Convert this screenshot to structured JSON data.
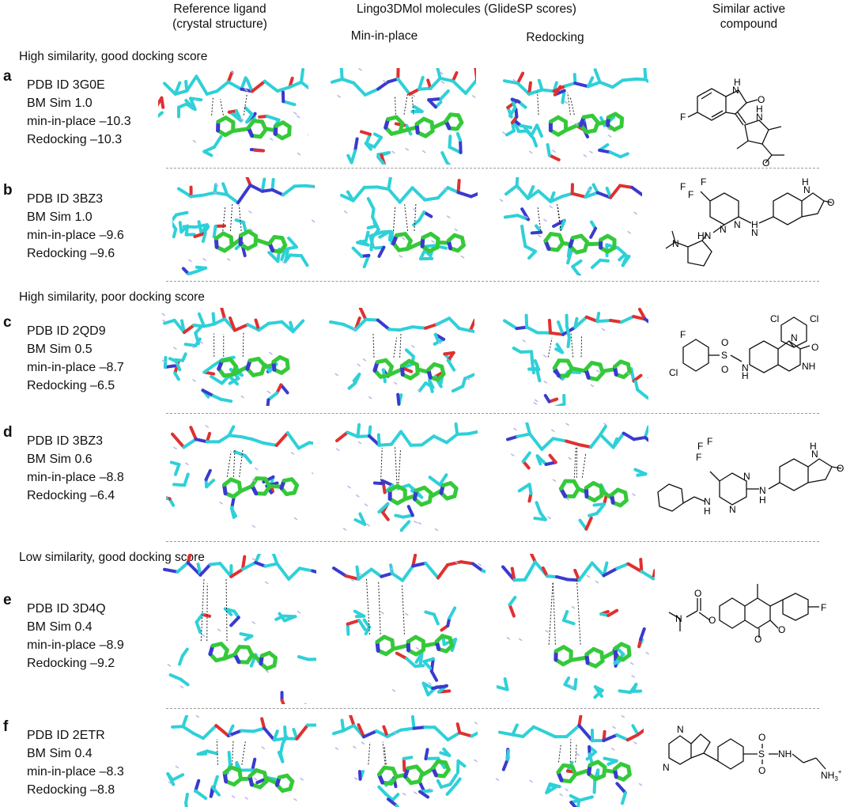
{
  "headers": {
    "reference": [
      "Reference ligand",
      "(crystal structure)"
    ],
    "lingo": "Lingo3DMol molecules (GlideSP scores)",
    "min_in_place": "Min-in-place",
    "redocking": "Redocking",
    "similar": [
      "Similar active",
      "compound"
    ]
  },
  "sections": {
    "high_good": "High similarity, good docking score",
    "high_poor": "High similarity, poor docking score",
    "low_good": "Low similarity, good docking score"
  },
  "rows": [
    {
      "letter": "a",
      "pdb": "PDB ID 3G0E",
      "sim": "BM Sim 1.0",
      "mip": "min-in-place –10.3",
      "redock": "Redocking –10.3"
    },
    {
      "letter": "b",
      "pdb": "PDB ID 3BZ3",
      "sim": "BM Sim 1.0",
      "mip": "min-in-place –9.6",
      "redock": "Redocking –9.6"
    },
    {
      "letter": "c",
      "pdb": "PDB ID 2QD9",
      "sim": "BM Sim 0.5",
      "mip": "min-in-place –8.7",
      "redock": "Redocking –6.5"
    },
    {
      "letter": "d",
      "pdb": "PDB ID 3BZ3",
      "sim": "BM Sim 0.6",
      "mip": "min-in-place –8.8",
      "redock": "Redocking –6.4"
    },
    {
      "letter": "e",
      "pdb": "PDB ID 3D4Q",
      "sim": "BM Sim 0.4",
      "mip": "min-in-place –8.9",
      "redock": "Redocking –9.2"
    },
    {
      "letter": "f",
      "pdb": "PDB ID 2ETR",
      "sim": "BM Sim 0.4",
      "mip": "min-in-place –8.3",
      "redock": "Redocking –8.8"
    }
  ],
  "atoms": {
    "a": {
      "h": "H",
      "n": "N",
      "o": "O",
      "f": "F",
      "n2": "N",
      "h2": "H",
      "o2": "O"
    },
    "b": {
      "cf3": "F",
      "h": "H",
      "n": "N",
      "o": "O",
      "nh": "N",
      "hn": "HN",
      "hn2": "H",
      "n3": "N",
      "n4": "N",
      "nme": "N"
    },
    "c": {
      "f": "F",
      "cl": "Cl",
      "cl2": "Cl",
      "cl3": "Cl",
      "n": "N",
      "o": "O",
      "s": "S",
      "o2": "O",
      "o3": "O",
      "nh": "NH",
      "h": "H",
      "n2": "N"
    },
    "d": {
      "f": "F",
      "h": "H",
      "n": "N",
      "o": "O",
      "n2": "N",
      "n3": "N",
      "hn": "N",
      "h2": "H",
      "n4": "N",
      "h3": "H"
    },
    "e": {
      "n": "N",
      "o": "O",
      "o2": "O",
      "o3": "O",
      "o4": "O",
      "f": "F"
    },
    "f": {
      "n": "N",
      "n2": "N",
      "s": "S",
      "o": "O",
      "o2": "O",
      "nh": "NH",
      "h": "H",
      "nh3": "NH"
    },
    "f_sup": "+",
    "f_sub": "3"
  },
  "colors": {
    "protein_carbon": "#2fd0d8",
    "ligand_carbon": "#35c93a",
    "nitrogen": "#3a3ad0",
    "oxygen": "#e03030",
    "sulfur": "#d8b020",
    "divider": "#9a9a9a"
  }
}
